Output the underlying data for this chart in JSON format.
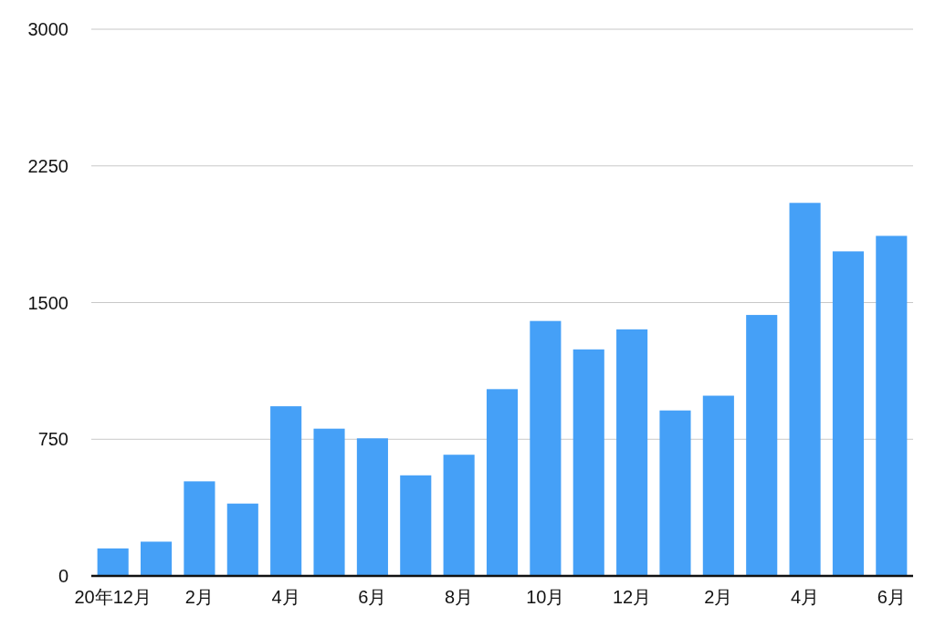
{
  "chart_data": {
    "type": "bar",
    "categories": [
      "20年12月",
      null,
      "2月",
      null,
      "4月",
      null,
      "6月",
      null,
      "8月",
      null,
      "10月",
      null,
      "12月",
      null,
      "2月",
      null,
      "4月",
      null,
      "6月"
    ],
    "values": [
      151,
      188,
      519,
      397,
      931,
      808,
      755,
      552,
      665,
      1025,
      1399,
      1243,
      1353,
      908,
      989,
      1432,
      2047,
      1781,
      1866
    ],
    "color": "#45a0f7",
    "ylim": [
      0,
      3000
    ],
    "yticks": [
      0,
      750,
      1500,
      2250,
      3000
    ],
    "grid": "y"
  }
}
